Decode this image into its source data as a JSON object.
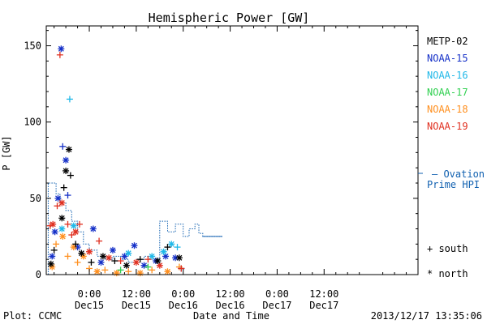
{
  "chart_data": {
    "type": "scatter",
    "title": "Hemispheric Power [GW]",
    "ylabel": "P [GW]",
    "xlabel": "Date and Time",
    "ylim": [
      0,
      163
    ],
    "xlim": [
      -11,
      84
    ],
    "yticks": [
      0,
      50,
      100,
      150
    ],
    "xticks": [
      {
        "t": 0,
        "time": "0:00",
        "date": "Dec15"
      },
      {
        "t": 12,
        "time": "12:00",
        "date": "Dec15"
      },
      {
        "t": 24,
        "time": "0:00",
        "date": "Dec16"
      },
      {
        "t": 36,
        "time": "12:00",
        "date": "Dec16"
      },
      {
        "t": 48,
        "time": "0:00",
        "date": "Dec17"
      },
      {
        "t": 60,
        "time": "12:00",
        "date": "Dec17"
      }
    ],
    "series": [
      {
        "name": "METP-02",
        "color": "#000000"
      },
      {
        "name": "NOAA-15",
        "color": "#1530c8"
      },
      {
        "name": "NOAA-16",
        "color": "#20b8e8"
      },
      {
        "name": "NOAA-17",
        "color": "#30d050"
      },
      {
        "name": "NOAA-18",
        "color": "#ff9020"
      },
      {
        "name": "NOAA-19",
        "color": "#e03020"
      }
    ],
    "ovation": {
      "label_line1": "— Ovation",
      "label_line2": "Prime HPI",
      "color": "#1060b0",
      "points": [
        [
          -10.5,
          0
        ],
        [
          -10.5,
          60
        ],
        [
          -8.5,
          60
        ],
        [
          -8.5,
          53
        ],
        [
          -7.5,
          53
        ],
        [
          -7.5,
          47
        ],
        [
          -6,
          47
        ],
        [
          -6,
          42
        ],
        [
          -4.5,
          42
        ],
        [
          -4.5,
          35
        ],
        [
          -3,
          35
        ],
        [
          -3,
          28
        ],
        [
          -1.5,
          28
        ],
        [
          -1.5,
          20
        ],
        [
          0,
          20
        ],
        [
          0,
          16
        ],
        [
          2,
          16
        ],
        [
          2,
          12
        ],
        [
          4,
          12
        ],
        [
          4,
          10
        ],
        [
          6,
          10
        ],
        [
          6,
          12
        ],
        [
          8,
          12
        ],
        [
          8,
          10
        ],
        [
          10,
          10
        ],
        [
          10,
          8
        ],
        [
          12,
          8
        ],
        [
          12,
          10
        ],
        [
          14,
          10
        ],
        [
          14,
          12
        ],
        [
          16,
          12
        ],
        [
          16,
          10
        ],
        [
          18,
          10
        ],
        [
          18,
          35
        ],
        [
          20,
          35
        ],
        [
          20,
          28
        ],
        [
          22,
          28
        ],
        [
          22,
          33
        ],
        [
          24,
          33
        ],
        [
          24,
          25
        ],
        [
          25.5,
          25
        ],
        [
          25.5,
          30
        ],
        [
          27,
          30
        ],
        [
          27,
          33
        ],
        [
          28,
          33
        ],
        [
          28,
          27
        ],
        [
          29,
          27
        ],
        [
          29,
          25
        ],
        [
          34,
          25
        ]
      ]
    },
    "markers": {
      "south": "+ south",
      "north": "* north"
    },
    "points": [
      {
        "s": 1,
        "m": "*",
        "x": -9.5,
        "y": 12
      },
      {
        "s": 1,
        "m": "*",
        "x": -8.8,
        "y": 28
      },
      {
        "s": 1,
        "m": "*",
        "x": -8,
        "y": 50
      },
      {
        "s": 1,
        "m": "*",
        "x": -7.2,
        "y": 148
      },
      {
        "s": 1,
        "m": "+",
        "x": -6.8,
        "y": 84
      },
      {
        "s": 1,
        "m": "*",
        "x": -6,
        "y": 75
      },
      {
        "s": 1,
        "m": "+",
        "x": -5.5,
        "y": 52
      },
      {
        "s": 1,
        "m": "*",
        "x": -3,
        "y": 18
      },
      {
        "s": 1,
        "m": "*",
        "x": 1,
        "y": 30
      },
      {
        "s": 1,
        "m": "*",
        "x": 3,
        "y": 8
      },
      {
        "s": 1,
        "m": "*",
        "x": 6,
        "y": 16
      },
      {
        "s": 1,
        "m": "*",
        "x": 9,
        "y": 12
      },
      {
        "s": 1,
        "m": "*",
        "x": 11.5,
        "y": 19
      },
      {
        "s": 1,
        "m": "*",
        "x": 14,
        "y": 6
      },
      {
        "s": 1,
        "m": "*",
        "x": 17,
        "y": 9
      },
      {
        "s": 1,
        "m": "*",
        "x": 19.5,
        "y": 12
      },
      {
        "s": 1,
        "m": "*",
        "x": 22,
        "y": 11
      },
      {
        "s": 1,
        "m": "+",
        "x": 23.5,
        "y": 4
      },
      {
        "s": 2,
        "m": "+",
        "x": -5,
        "y": 115
      },
      {
        "s": 2,
        "m": "*",
        "x": -7,
        "y": 30
      },
      {
        "s": 2,
        "m": "*",
        "x": -4,
        "y": 32
      },
      {
        "s": 2,
        "m": "*",
        "x": 10,
        "y": 14
      },
      {
        "s": 2,
        "m": "*",
        "x": 19,
        "y": 15
      },
      {
        "s": 2,
        "m": "*",
        "x": 21,
        "y": 20
      },
      {
        "s": 2,
        "m": "+",
        "x": 22.5,
        "y": 18
      },
      {
        "s": 2,
        "m": "*",
        "x": 16,
        "y": 12
      },
      {
        "s": 3,
        "m": "+",
        "x": 8,
        "y": 3
      },
      {
        "s": 3,
        "m": "+",
        "x": 15,
        "y": 5
      },
      {
        "s": 4,
        "m": "*",
        "x": -9.5,
        "y": 5
      },
      {
        "s": 4,
        "m": "+",
        "x": -8.5,
        "y": 20
      },
      {
        "s": 4,
        "m": "*",
        "x": -6.8,
        "y": 25
      },
      {
        "s": 4,
        "m": "+",
        "x": -5.5,
        "y": 12
      },
      {
        "s": 4,
        "m": "*",
        "x": -4,
        "y": 18
      },
      {
        "s": 4,
        "m": "+",
        "x": -3,
        "y": 8
      },
      {
        "s": 4,
        "m": "*",
        "x": -1.5,
        "y": 12
      },
      {
        "s": 4,
        "m": "+",
        "x": 0,
        "y": 4
      },
      {
        "s": 4,
        "m": "*",
        "x": 2,
        "y": 2
      },
      {
        "s": 4,
        "m": "+",
        "x": 4,
        "y": 3
      },
      {
        "s": 4,
        "m": "*",
        "x": 7,
        "y": 1
      },
      {
        "s": 4,
        "m": "+",
        "x": 10,
        "y": 2
      },
      {
        "s": 4,
        "m": "*",
        "x": 13,
        "y": 1
      },
      {
        "s": 4,
        "m": "+",
        "x": 16,
        "y": 3
      },
      {
        "s": 4,
        "m": "*",
        "x": 20,
        "y": 2
      },
      {
        "s": 4,
        "m": "+",
        "x": 23,
        "y": 5
      },
      {
        "s": 5,
        "m": "+",
        "x": -7.5,
        "y": 144
      },
      {
        "s": 5,
        "m": "+",
        "x": -10,
        "y": 32
      },
      {
        "s": 5,
        "m": "*",
        "x": -9.3,
        "y": 33
      },
      {
        "s": 5,
        "m": "+",
        "x": -8.2,
        "y": 45
      },
      {
        "s": 5,
        "m": "*",
        "x": -7,
        "y": 47
      },
      {
        "s": 5,
        "m": "+",
        "x": -5.5,
        "y": 33
      },
      {
        "s": 5,
        "m": "+",
        "x": -4.5,
        "y": 26
      },
      {
        "s": 5,
        "m": "*",
        "x": -3.5,
        "y": 28
      },
      {
        "s": 5,
        "m": "+",
        "x": -2.5,
        "y": 33
      },
      {
        "s": 5,
        "m": "*",
        "x": 0,
        "y": 15
      },
      {
        "s": 5,
        "m": "+",
        "x": 2.5,
        "y": 22
      },
      {
        "s": 5,
        "m": "*",
        "x": 5,
        "y": 11
      },
      {
        "s": 5,
        "m": "+",
        "x": 8,
        "y": 9
      },
      {
        "s": 5,
        "m": "*",
        "x": 12,
        "y": 8
      },
      {
        "s": 5,
        "m": "+",
        "x": 15,
        "y": 10
      },
      {
        "s": 5,
        "m": "*",
        "x": 18,
        "y": 6
      },
      {
        "s": 5,
        "m": "+",
        "x": 23.5,
        "y": 4
      },
      {
        "s": 0,
        "m": "*",
        "x": -9.8,
        "y": 7
      },
      {
        "s": 0,
        "m": "*",
        "x": -7,
        "y": 37
      },
      {
        "s": 0,
        "m": "+",
        "x": -9,
        "y": 16
      },
      {
        "s": 0,
        "m": "*",
        "x": -5.2,
        "y": 82
      },
      {
        "s": 0,
        "m": "+",
        "x": -4.8,
        "y": 65
      },
      {
        "s": 0,
        "m": "+",
        "x": -6.5,
        "y": 57
      },
      {
        "s": 0,
        "m": "*",
        "x": -6,
        "y": 68
      },
      {
        "s": 0,
        "m": "+",
        "x": -3.5,
        "y": 20
      },
      {
        "s": 0,
        "m": "*",
        "x": -2,
        "y": 14
      },
      {
        "s": 0,
        "m": "+",
        "x": 0.5,
        "y": 8
      },
      {
        "s": 0,
        "m": "*",
        "x": 3.5,
        "y": 12
      },
      {
        "s": 0,
        "m": "+",
        "x": 6.5,
        "y": 9
      },
      {
        "s": 0,
        "m": "*",
        "x": 9.5,
        "y": 6
      },
      {
        "s": 0,
        "m": "+",
        "x": 13,
        "y": 10
      },
      {
        "s": 0,
        "m": "*",
        "x": 17.5,
        "y": 9
      },
      {
        "s": 0,
        "m": "+",
        "x": 20,
        "y": 18
      },
      {
        "s": 0,
        "m": "*",
        "x": 23,
        "y": 11
      }
    ]
  },
  "footer": {
    "plot_credit": "Plot: CCMC",
    "timestamp": "2013/12/17 13:35:06"
  }
}
